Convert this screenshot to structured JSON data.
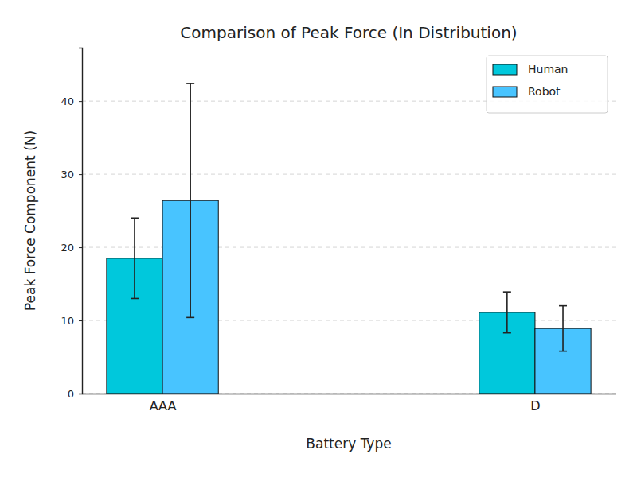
{
  "chart_data": {
    "type": "bar",
    "title": "Comparison of Peak Force (In Distribution)",
    "x_label": "Battery Type",
    "y_label": "Peak Force Component (N)",
    "categories": [
      "AAA",
      "D"
    ],
    "series": [
      {
        "name": "Human",
        "color": "#00c8dc",
        "values": [
          18.5,
          11.1
        ],
        "errors": [
          5.5,
          2.8
        ]
      },
      {
        "name": "Robot",
        "color": "#48c4ff",
        "values": [
          26.4,
          8.9
        ],
        "errors": [
          16.0,
          3.1
        ]
      }
    ],
    "ylim": [
      0,
      47.3
    ],
    "yticks": [
      0,
      10,
      20,
      30,
      40
    ],
    "grid": true,
    "legend": "upper right"
  }
}
